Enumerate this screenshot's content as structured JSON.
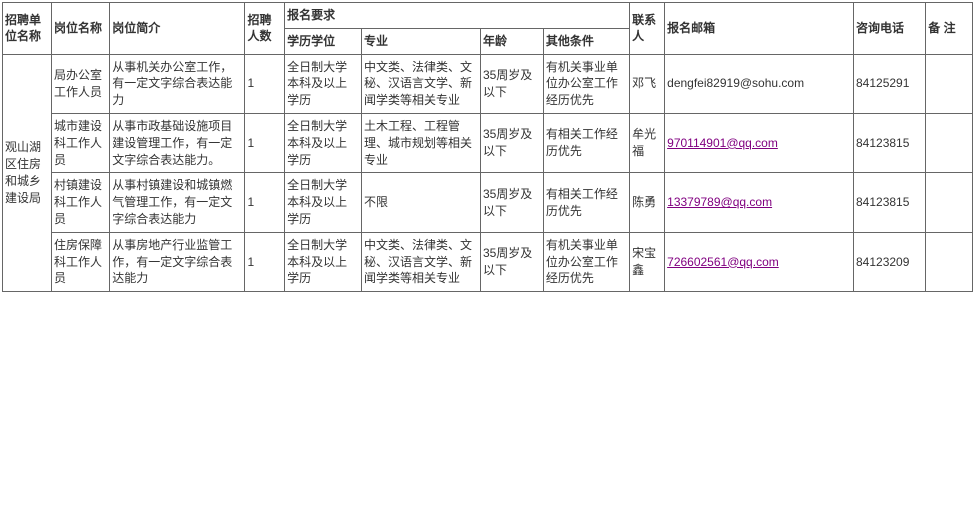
{
  "headers": {
    "unit": "招聘单位名称",
    "position": "岗位名称",
    "intro": "岗位简介",
    "count": "招聘人数",
    "requirements": "报名要求",
    "edu": "学历学位",
    "major": "专业",
    "age": "年龄",
    "other": "其他条件",
    "contact": "联系人",
    "email": "报名邮箱",
    "phone": "咨询电话",
    "remark": "备 注"
  },
  "unit_name": "观山湖区住房和城乡建设局",
  "rows": [
    {
      "position": "局办公室工作人员",
      "intro": "从事机关办公室工作，有一定文字综合表达能力",
      "count": "1",
      "edu": "全日制大学本科及以上学历",
      "major": "中文类、法律类、文秘、汉语言文学、新闻学类等相关专业",
      "age": "35周岁及以下",
      "other": "有机关事业单位办公室工作经历优先",
      "contact": "邓飞",
      "email": "dengfei82919@sohu.com",
      "email_link": false,
      "phone": "84125291",
      "remark": ""
    },
    {
      "position": "城市建设科工作人员",
      "intro": "从事市政基础设施项目建设管理工作，有一定文字综合表达能力。",
      "count": "1",
      "edu": "全日制大学本科及以上学历",
      "major": "土木工程、工程管理、城市规划等相关专业",
      "age": "35周岁及以下",
      "other": "有相关工作经历优先",
      "contact": "牟光福",
      "email": "970114901@qq.com",
      "email_link": true,
      "phone": "84123815",
      "remark": ""
    },
    {
      "position": "村镇建设科工作人员",
      "intro": "从事村镇建设和城镇燃气管理工作，有一定文字综合表达能力",
      "count": "1",
      "edu": "全日制大学本科及以上学历",
      "major": "不限",
      "age": "35周岁及以下",
      "other": "有相关工作经历优先",
      "contact": "陈勇",
      "email": "13379789@qq.com",
      "email_link": true,
      "phone": "84123815",
      "remark": ""
    },
    {
      "position": "住房保障科工作人员",
      "intro": "从事房地产行业监管工作，有一定文字综合表达能力",
      "count": "1",
      "edu": "全日制大学本科及以上学历",
      "major": "中文类、法律类、文秘、汉语言文学、新闻学类等相关专业",
      "age": "35周岁及以下",
      "other": "有机关事业单位办公室工作经历优先",
      "contact": "宋宝鑫",
      "email": "726602561@qq.com",
      "email_link": true,
      "phone": "84123209",
      "remark": ""
    }
  ]
}
